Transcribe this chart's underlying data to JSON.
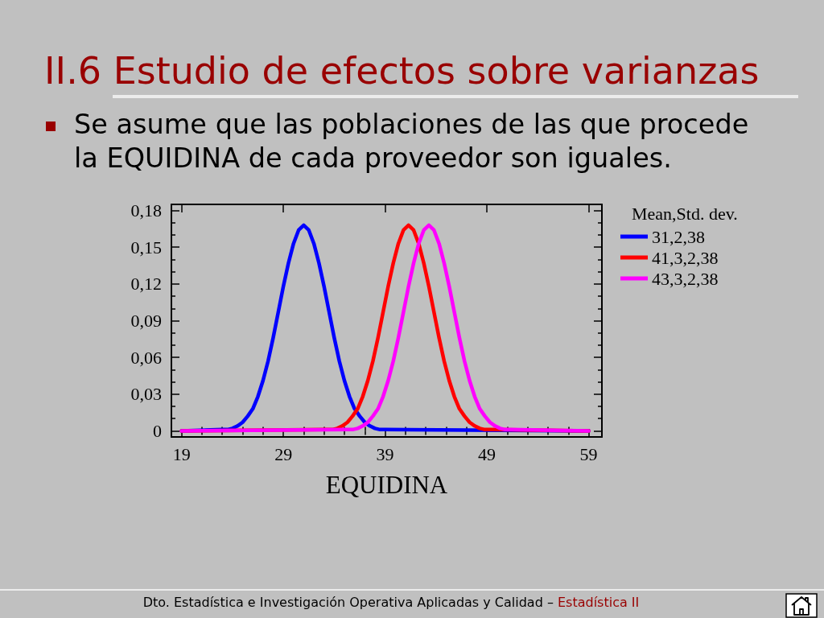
{
  "chart_data": {
    "type": "line",
    "title": "II.6 Estudio de efectos sobre varianzas",
    "subtitle": "Se asume que las poblaciones de las que procede la EQUIDINA de cada proveedor son iguales.",
    "xlabel": "EQUIDINA",
    "legend_title": "Mean,Std. dev.",
    "annotations": [
      "Dto. Estadística e Investigación Operativa Aplicadas y Calidad –",
      "Estadística II"
    ],
    "series": [
      {
        "name": "31,2,38",
        "color": "#0000ff",
        "x": [
          19,
          23,
          23.5,
          24,
          24.5,
          25,
          25.5,
          26,
          26.5,
          27,
          27.5,
          28,
          28.5,
          29,
          29.5,
          30,
          30.5,
          31,
          31.5,
          32,
          32.5,
          33,
          33.5,
          34,
          34.5,
          35,
          35.5,
          36,
          36.5,
          37,
          37.5,
          38,
          38.5,
          39,
          59
        ],
        "values": [
          0,
          0.001,
          0.001,
          0.002,
          0.004,
          0.007,
          0.012,
          0.018,
          0.028,
          0.041,
          0.057,
          0.076,
          0.097,
          0.118,
          0.137,
          0.153,
          0.164,
          0.168,
          0.164,
          0.153,
          0.137,
          0.118,
          0.097,
          0.076,
          0.057,
          0.041,
          0.028,
          0.018,
          0.012,
          0.007,
          0.004,
          0.002,
          0.001,
          0.001,
          0
        ]
      },
      {
        "name": "41,3,2,38",
        "color": "#ff0000",
        "x": [
          19,
          33.3,
          33.8,
          34.3,
          34.8,
          35.3,
          35.8,
          36.3,
          36.8,
          37.3,
          37.8,
          38.3,
          38.8,
          39.3,
          39.8,
          40.3,
          40.8,
          41.3,
          41.8,
          42.3,
          42.8,
          43.3,
          43.8,
          44.3,
          44.8,
          45.3,
          45.8,
          46.3,
          46.8,
          47.3,
          47.8,
          48.3,
          48.8,
          49.3,
          59
        ],
        "values": [
          0,
          0.001,
          0.001,
          0.002,
          0.004,
          0.007,
          0.012,
          0.018,
          0.028,
          0.041,
          0.057,
          0.076,
          0.097,
          0.118,
          0.137,
          0.153,
          0.164,
          0.168,
          0.164,
          0.153,
          0.137,
          0.118,
          0.097,
          0.076,
          0.057,
          0.041,
          0.028,
          0.018,
          0.012,
          0.007,
          0.004,
          0.002,
          0.001,
          0.001,
          0
        ]
      },
      {
        "name": "43,3,2,38",
        "color": "#ff00ff",
        "x": [
          19,
          35.3,
          35.8,
          36.3,
          36.8,
          37.3,
          37.8,
          38.3,
          38.8,
          39.3,
          39.8,
          40.3,
          40.8,
          41.3,
          41.8,
          42.3,
          42.8,
          43.3,
          43.8,
          44.3,
          44.8,
          45.3,
          45.8,
          46.3,
          46.8,
          47.3,
          47.8,
          48.3,
          48.8,
          49.3,
          49.8,
          50.3,
          50.8,
          51.3,
          59
        ],
        "values": [
          0,
          0.001,
          0.001,
          0.002,
          0.004,
          0.007,
          0.012,
          0.018,
          0.028,
          0.041,
          0.057,
          0.076,
          0.097,
          0.118,
          0.137,
          0.153,
          0.164,
          0.168,
          0.164,
          0.153,
          0.137,
          0.118,
          0.097,
          0.076,
          0.057,
          0.041,
          0.028,
          0.018,
          0.012,
          0.007,
          0.004,
          0.002,
          0.001,
          0.001,
          0
        ]
      }
    ],
    "xlim": [
      18,
      60.3
    ],
    "xticks": [
      19,
      {
        "value": 21,
        "label": null
      },
      {
        "value": 23,
        "label": null
      },
      {
        "value": 25,
        "label": null
      },
      {
        "value": 27,
        "label": null
      },
      29,
      {
        "value": 31,
        "label": null
      },
      {
        "value": 33,
        "label": null
      },
      {
        "value": 35,
        "label": null
      },
      {
        "value": 37,
        "label": null
      },
      39,
      {
        "value": 41,
        "label": null
      },
      {
        "value": 43,
        "label": null
      },
      {
        "value": 45,
        "label": null
      },
      {
        "value": 47,
        "label": null
      },
      49,
      {
        "value": 51,
        "label": null
      },
      {
        "value": 53,
        "label": null
      },
      {
        "value": 55,
        "label": null
      },
      {
        "value": 57,
        "label": null
      },
      59
    ],
    "ylim": [
      -0.005,
      0.185
    ],
    "yticks": [
      0,
      {
        "value": 0.01,
        "label": null
      },
      {
        "value": 0.02,
        "label": null
      },
      {
        "value": 0.03,
        "label": "0,03"
      },
      {
        "value": 0.04,
        "label": null
      },
      {
        "value": 0.05,
        "label": null
      },
      {
        "value": 0.06,
        "label": "0,06"
      },
      {
        "value": 0.07,
        "label": null
      },
      {
        "value": 0.08,
        "label": null
      },
      {
        "value": 0.09,
        "label": "0,09"
      },
      {
        "value": 0.1,
        "label": null
      },
      {
        "value": 0.11,
        "label": null
      },
      {
        "value": 0.12,
        "label": "0,12"
      },
      {
        "value": 0.13,
        "label": null
      },
      {
        "value": 0.14,
        "label": null
      },
      {
        "value": 0.15,
        "label": "0,15"
      },
      {
        "value": 0.16,
        "label": null
      },
      {
        "value": 0.17,
        "label": null
      },
      {
        "value": 0.18,
        "label": "0,18"
      }
    ],
    "legend": "top right"
  }
}
